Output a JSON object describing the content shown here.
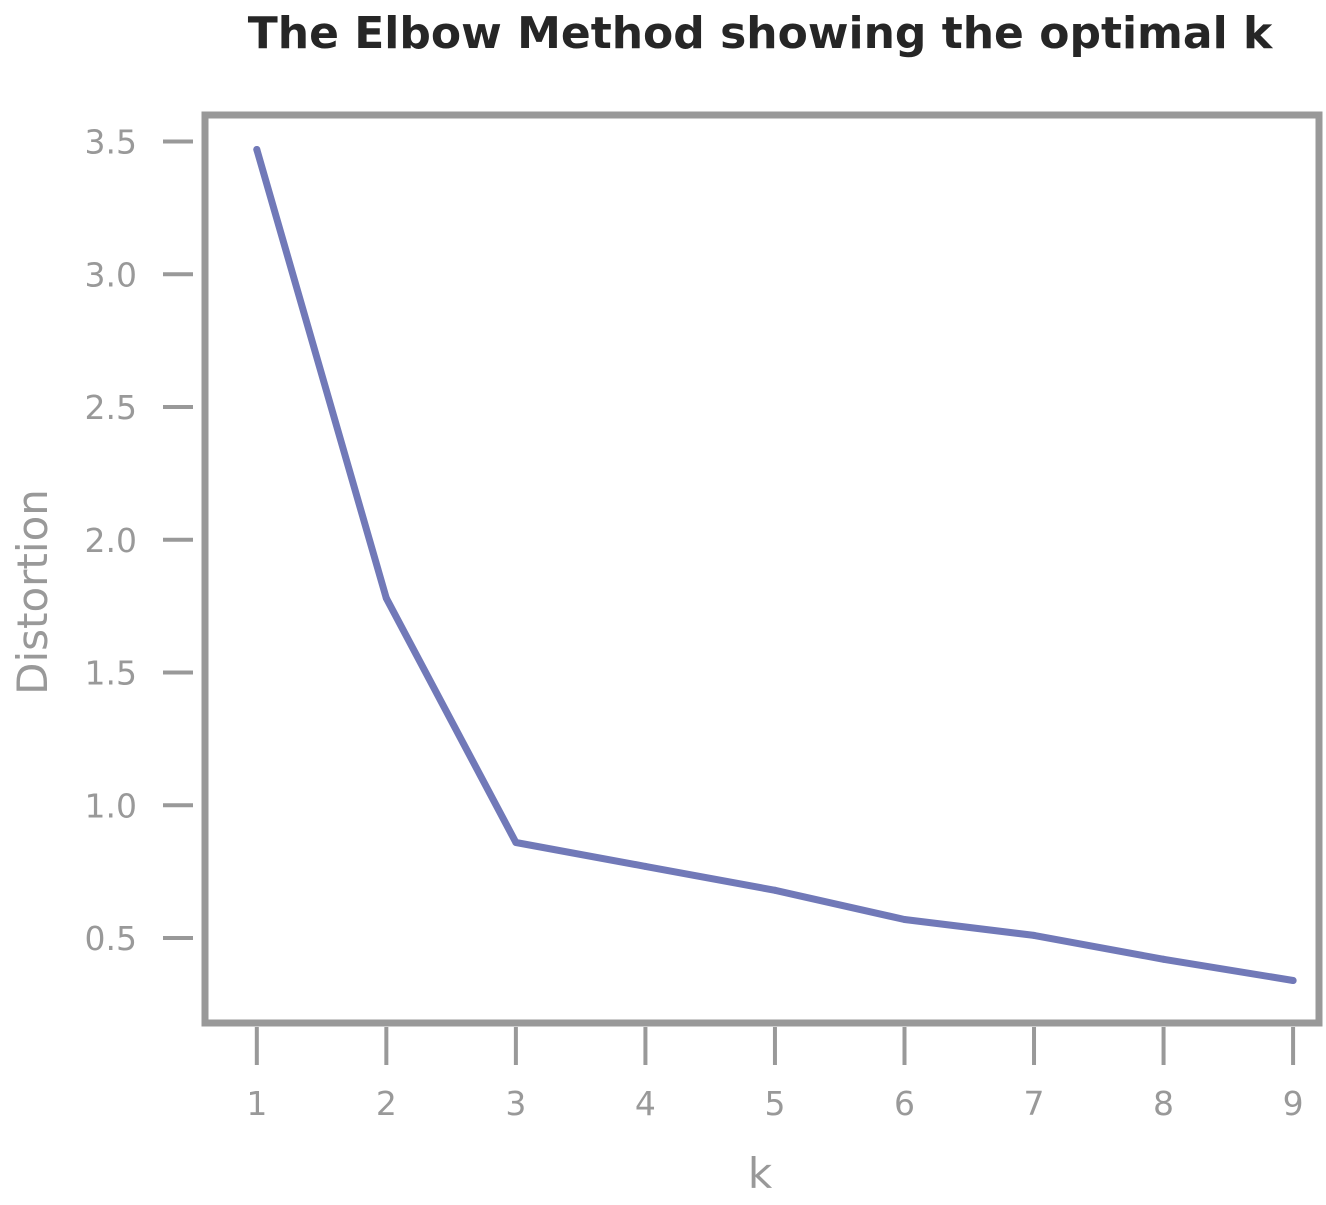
{
  "chart_data": {
    "type": "line",
    "title": "The Elbow Method showing the optimal k",
    "xlabel": "k",
    "ylabel": "Distortion",
    "x": [
      1,
      2,
      3,
      4,
      5,
      6,
      7,
      8,
      9
    ],
    "series": [
      {
        "values": [
          3.47,
          1.78,
          0.86,
          0.77,
          0.68,
          0.57,
          0.51,
          0.42,
          0.34
        ],
        "color": "#7179b8"
      }
    ],
    "xticks": [
      "1",
      "2",
      "3",
      "4",
      "5",
      "6",
      "7",
      "8",
      "9"
    ],
    "yticks": [
      "0.5",
      "1.0",
      "1.5",
      "2.0",
      "2.5",
      "3.0",
      "3.5"
    ],
    "ylim": [
      0.18,
      3.6
    ],
    "xlim": [
      0.6,
      9.2
    ],
    "grid": false,
    "axis_color": "#999999",
    "title_color": "#262626"
  }
}
